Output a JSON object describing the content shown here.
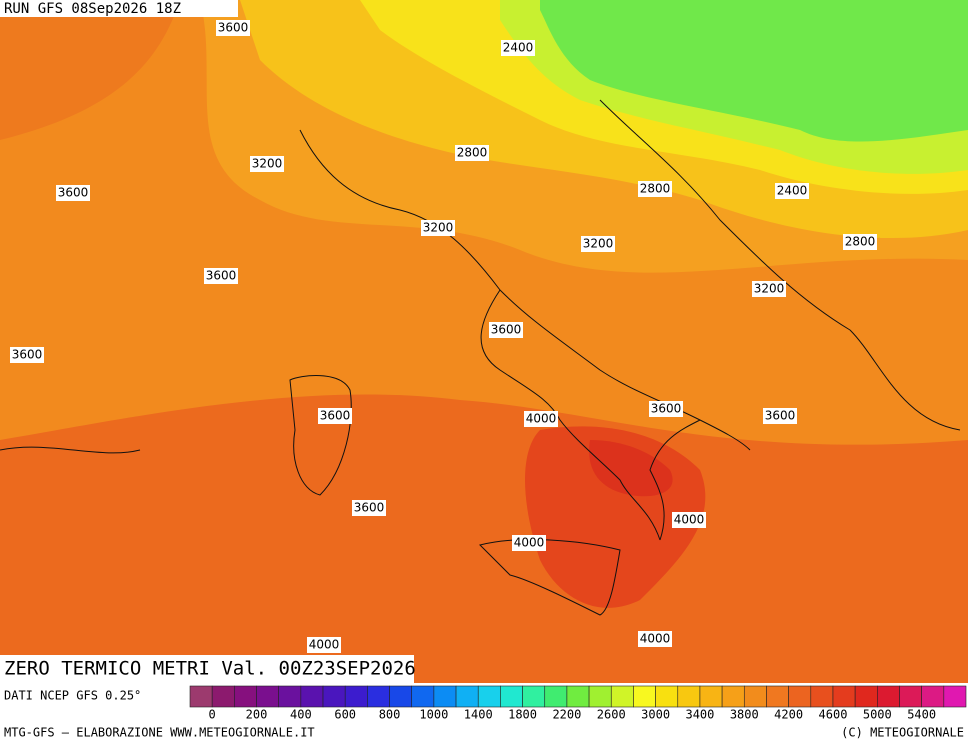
{
  "header": {
    "run": "RUN GFS 08Sep2026 18Z"
  },
  "contour_labels": [
    "3600",
    "2400",
    "3200",
    "2800",
    "3600",
    "2800",
    "2400",
    "3200",
    "3200",
    "2800",
    "3600",
    "3200",
    "3600",
    "3600",
    "3600",
    "4000",
    "3600",
    "3600",
    "3600",
    "4000",
    "4000",
    "4000",
    "4000"
  ],
  "footer": {
    "title": "ZERO TERMICO METRI Val. 00Z23SEP2026",
    "source": "DATI NCEP GFS 0.25°",
    "credit": "MTG-GFS — ELABORAZIONE WWW.METEOGIORNALE.IT",
    "copyright": "(C) METEOGIORNALE"
  },
  "colorbar": {
    "labels": [
      "0",
      "200",
      "400",
      "600",
      "800",
      "1000",
      "1400",
      "1800",
      "2200",
      "2600",
      "3000",
      "3400",
      "3800",
      "4200",
      "4600",
      "5000",
      "5400"
    ],
    "colors": [
      "#9c3a6e",
      "#8c1a6e",
      "#86107e",
      "#7a0f8e",
      "#6a119e",
      "#5a12ae",
      "#4a16be",
      "#3c1cce",
      "#2a2ee0",
      "#1848e8",
      "#1068f0",
      "#0c8cf4",
      "#10b0f4",
      "#18d0ec",
      "#20e8d0",
      "#30f0a0",
      "#40ec70",
      "#70ec40",
      "#a0f030",
      "#d0f428",
      "#f8f820",
      "#f8e010",
      "#f8c810",
      "#f8b414",
      "#f6a018",
      "#f28c1c",
      "#f07820",
      "#ec6420",
      "#e8501e",
      "#e43c1e",
      "#e0281e",
      "#dc1a30",
      "#dc1a58",
      "#dc1a84",
      "#e018b0"
    ]
  }
}
